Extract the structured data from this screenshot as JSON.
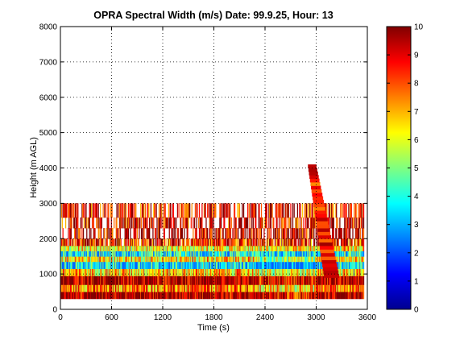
{
  "chart_data": {
    "type": "heatmap",
    "title": "OPRA Spectral Width (m/s)  Date: 99.9.25, Hour: 13",
    "xlabel": "Time (s)",
    "ylabel": "Height (m AGL)",
    "xlim": [
      0,
      3600
    ],
    "ylim": [
      0,
      8000
    ],
    "x_ticks": [
      0,
      600,
      1200,
      1800,
      2400,
      3000,
      3600
    ],
    "y_ticks": [
      0,
      1000,
      2000,
      3000,
      4000,
      5000,
      6000,
      7000,
      8000
    ],
    "grid": true,
    "colorbar": {
      "range": [
        0,
        10
      ],
      "ticks": [
        0,
        1,
        2,
        3,
        4,
        5,
        6,
        7,
        8,
        9,
        10
      ],
      "colormap": "jet"
    },
    "height_bands": [
      {
        "height_from": 300,
        "height_to": 500,
        "value": 9.8
      },
      {
        "height_from": 500,
        "height_to": 700,
        "value": 7.5
      },
      {
        "height_from": 700,
        "height_to": 950,
        "value": 9.7
      },
      {
        "height_from": 950,
        "height_to": 1150,
        "value": 6.8
      },
      {
        "height_from": 1150,
        "height_to": 1350,
        "value": 3.5
      },
      {
        "height_from": 1350,
        "height_to": 1500,
        "value": 6.5
      },
      {
        "height_from": 1500,
        "height_to": 1650,
        "value": 3.8
      },
      {
        "height_from": 1650,
        "height_to": 1800,
        "value": 6.3
      },
      {
        "height_from": 1800,
        "height_to": 2000,
        "value": 8.5
      },
      {
        "height_from": 2000,
        "height_to": 2300,
        "value": 9.3
      },
      {
        "height_from": 2300,
        "height_to": 2600,
        "value": 9.0
      },
      {
        "height_from": 2600,
        "height_to": 3000,
        "value": 8.8
      }
    ],
    "plume": {
      "time_from": 2950,
      "time_to": 3180,
      "height_from": 900,
      "height_to": 4050,
      "value": 8.5
    }
  }
}
